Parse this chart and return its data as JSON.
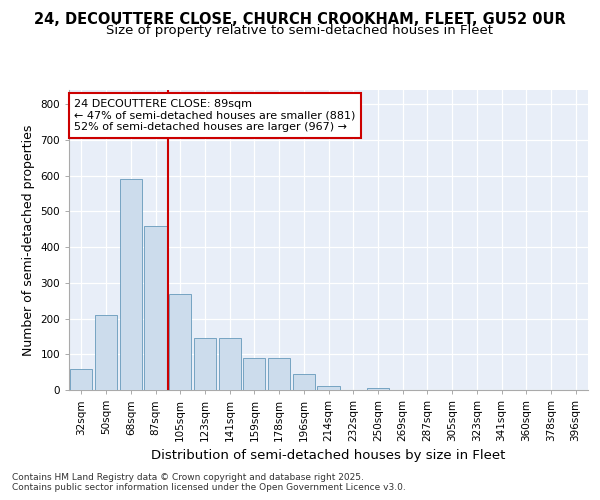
{
  "title_line1": "24, DECOUTTERE CLOSE, CHURCH CROOKHAM, FLEET, GU52 0UR",
  "title_line2": "Size of property relative to semi-detached houses in Fleet",
  "xlabel": "Distribution of semi-detached houses by size in Fleet",
  "ylabel": "Number of semi-detached properties",
  "categories": [
    "32sqm",
    "50sqm",
    "68sqm",
    "87sqm",
    "105sqm",
    "123sqm",
    "141sqm",
    "159sqm",
    "178sqm",
    "196sqm",
    "214sqm",
    "232sqm",
    "250sqm",
    "269sqm",
    "287sqm",
    "305sqm",
    "323sqm",
    "341sqm",
    "360sqm",
    "378sqm",
    "396sqm"
  ],
  "values": [
    60,
    210,
    590,
    460,
    270,
    145,
    145,
    90,
    90,
    45,
    10,
    0,
    5,
    0,
    0,
    0,
    0,
    0,
    0,
    0,
    0
  ],
  "bar_color": "#ccdcec",
  "bar_edge_color": "#6699bb",
  "vline_color": "#cc0000",
  "annotation_text": "24 DECOUTTERE CLOSE: 89sqm\n← 47% of semi-detached houses are smaller (881)\n52% of semi-detached houses are larger (967) →",
  "annotation_box_color": "#ffffff",
  "annotation_box_edge": "#cc0000",
  "ylim": [
    0,
    840
  ],
  "yticks": [
    0,
    100,
    200,
    300,
    400,
    500,
    600,
    700,
    800
  ],
  "background_color": "#e8eef8",
  "footer_text": "Contains HM Land Registry data © Crown copyright and database right 2025.\nContains public sector information licensed under the Open Government Licence v3.0.",
  "title_fontsize": 10.5,
  "subtitle_fontsize": 9.5,
  "axis_label_fontsize": 9,
  "tick_fontsize": 7.5,
  "annotation_fontsize": 8,
  "footer_fontsize": 6.5
}
